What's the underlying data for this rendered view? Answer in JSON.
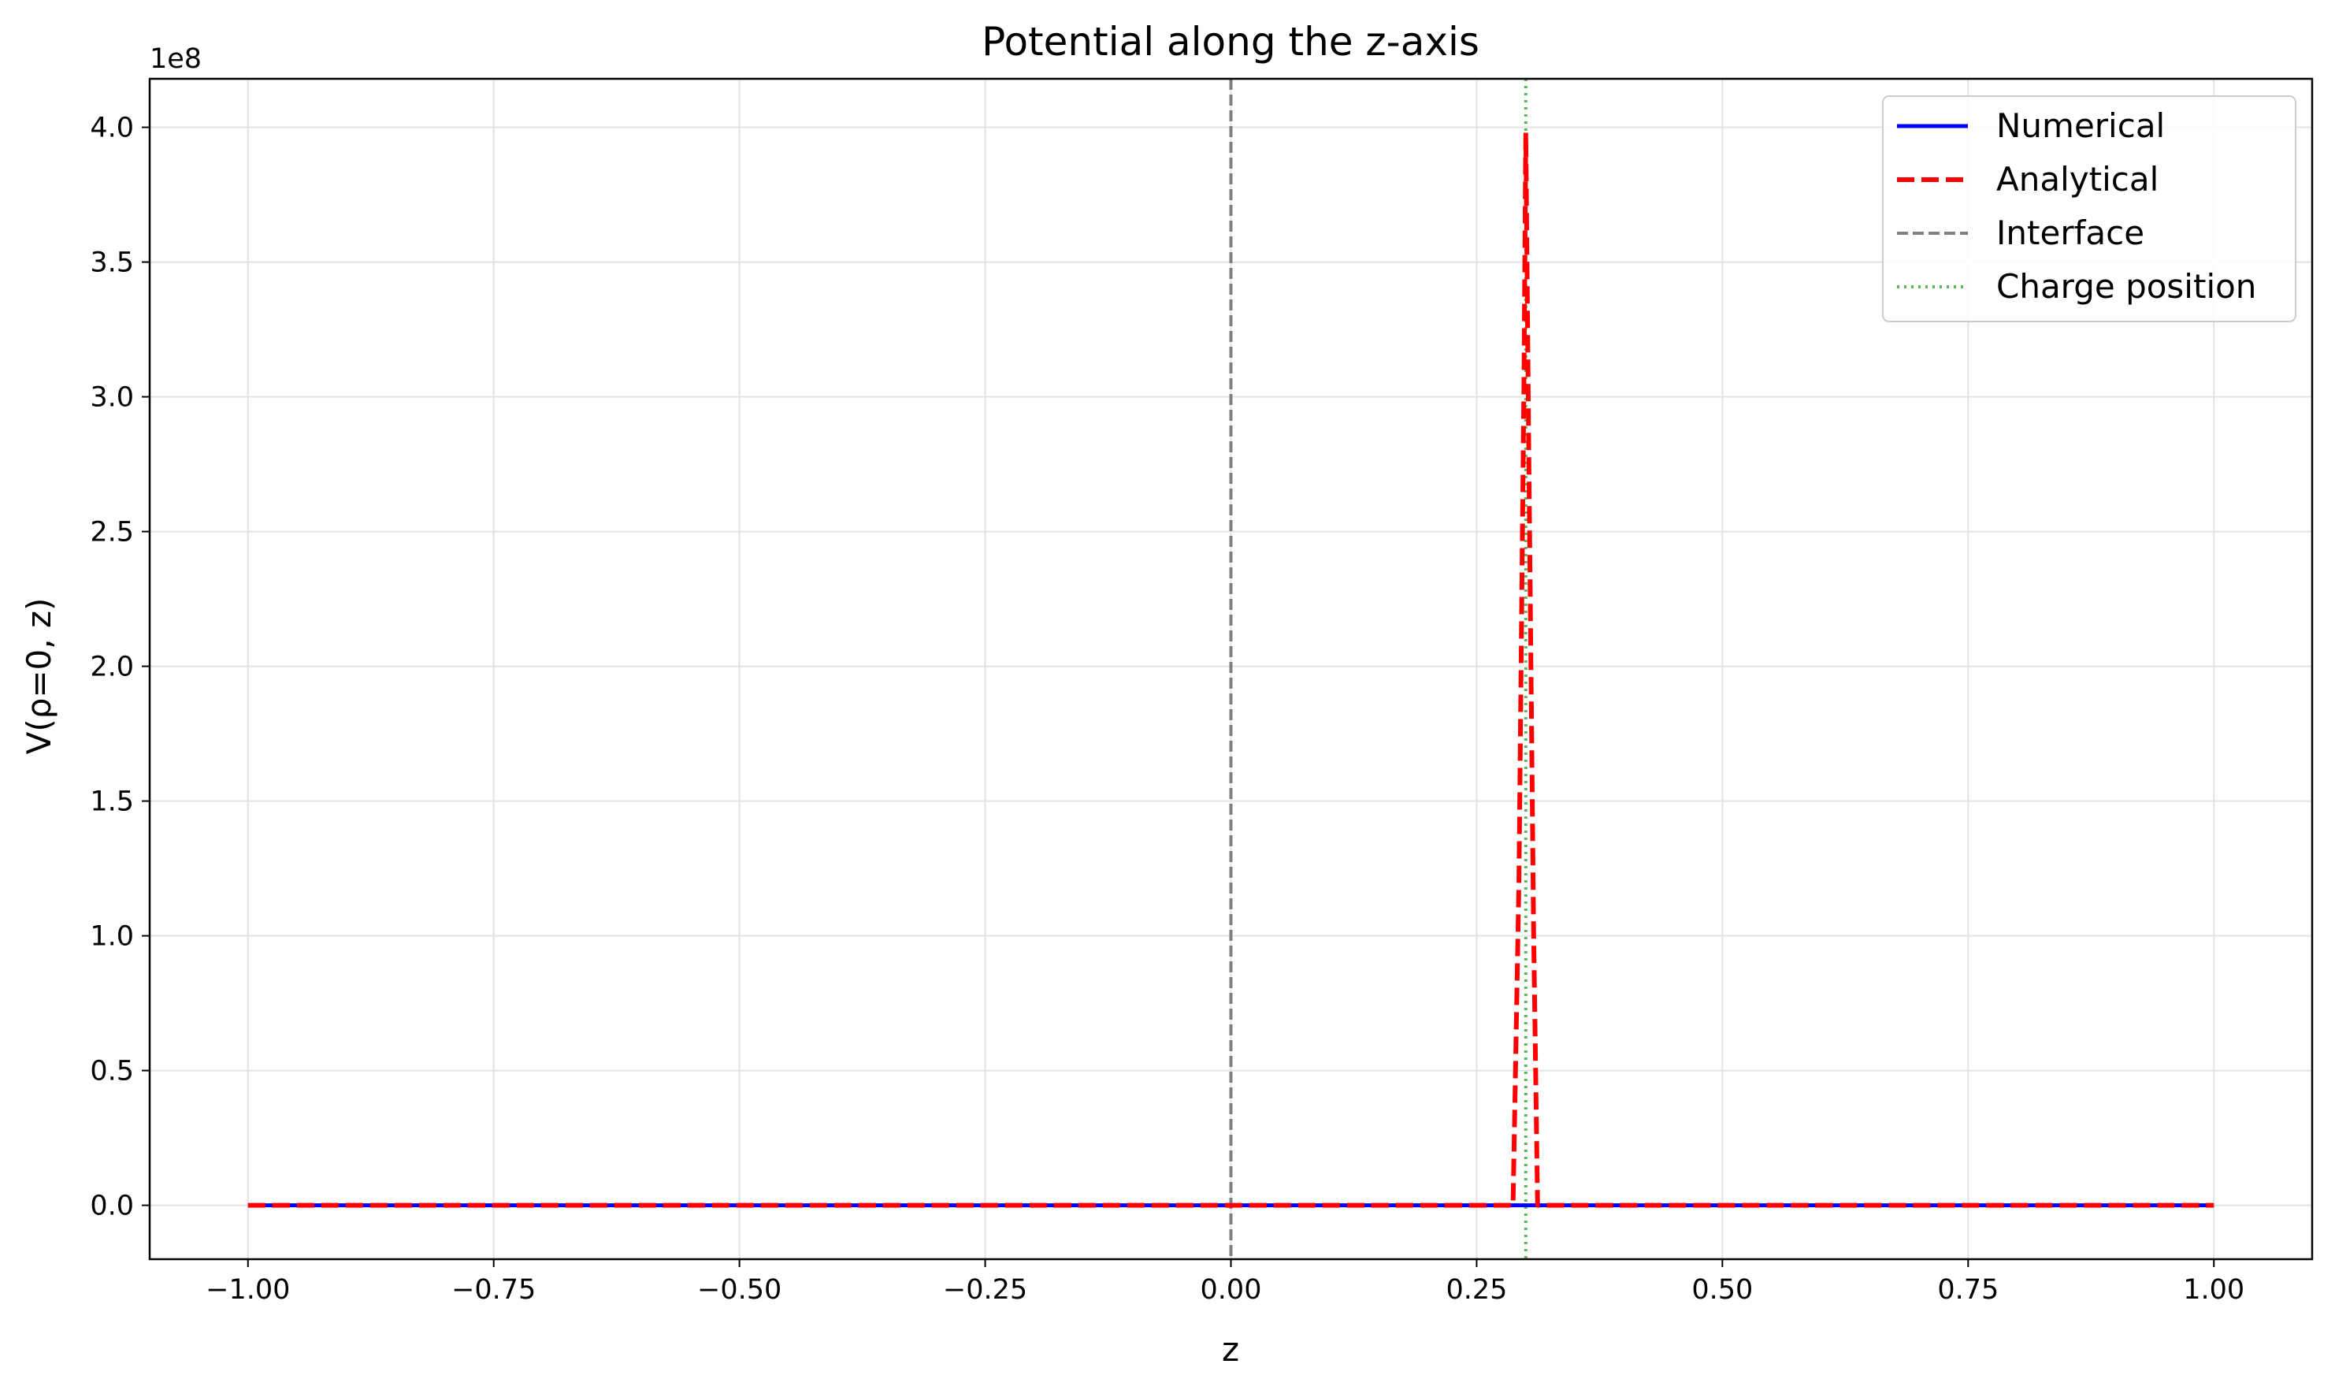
{
  "chart_data": {
    "type": "line",
    "title": "Potential along the z-axis",
    "xlabel": "z",
    "ylabel": "V(ρ=0, z)",
    "y_offset_text": "1e8",
    "y_scale_factor": 100000000,
    "xlim": [
      -1.1,
      1.1
    ],
    "ylim": [
      -20000000.0,
      418000000.0
    ],
    "grid": true,
    "legend_position": "top-right",
    "x_ticks": [
      -1.0,
      -0.75,
      -0.5,
      -0.25,
      0.0,
      0.25,
      0.5,
      0.75,
      1.0
    ],
    "x_tick_labels": [
      "−1.00",
      "−0.75",
      "−0.50",
      "−0.25",
      "0.00",
      "0.25",
      "0.50",
      "0.75",
      "1.00"
    ],
    "y_ticks": [
      0,
      50000000.0,
      100000000.0,
      150000000.0,
      200000000.0,
      250000000.0,
      300000000.0,
      350000000.0,
      400000000.0
    ],
    "y_tick_labels": [
      "0.0",
      "0.5",
      "1.0",
      "1.5",
      "2.0",
      "2.5",
      "3.0",
      "3.5",
      "4.0"
    ],
    "series": [
      {
        "name": "Numerical",
        "color": "#0000ff",
        "style": "solid",
        "x": [
          -1.0,
          0.29,
          0.3,
          0.31,
          1.0
        ],
        "y": [
          0,
          0,
          0,
          0,
          0
        ]
      },
      {
        "name": "Analytical",
        "color": "#ff0000",
        "style": "dashed",
        "x": [
          -1.0,
          0.287,
          0.293,
          0.298,
          0.3,
          0.303,
          0.308,
          0.312,
          1.0
        ],
        "y": [
          0,
          0,
          120000000.0,
          300000000.0,
          398000000.0,
          280000000.0,
          100000000.0,
          0,
          0
        ]
      }
    ],
    "vlines": [
      {
        "name": "Interface",
        "x": 0.0,
        "color": "#7f7f7f",
        "style": "dashed"
      },
      {
        "name": "Charge position",
        "x": 0.3,
        "color": "#5cb85c",
        "style": "dotted"
      }
    ]
  }
}
